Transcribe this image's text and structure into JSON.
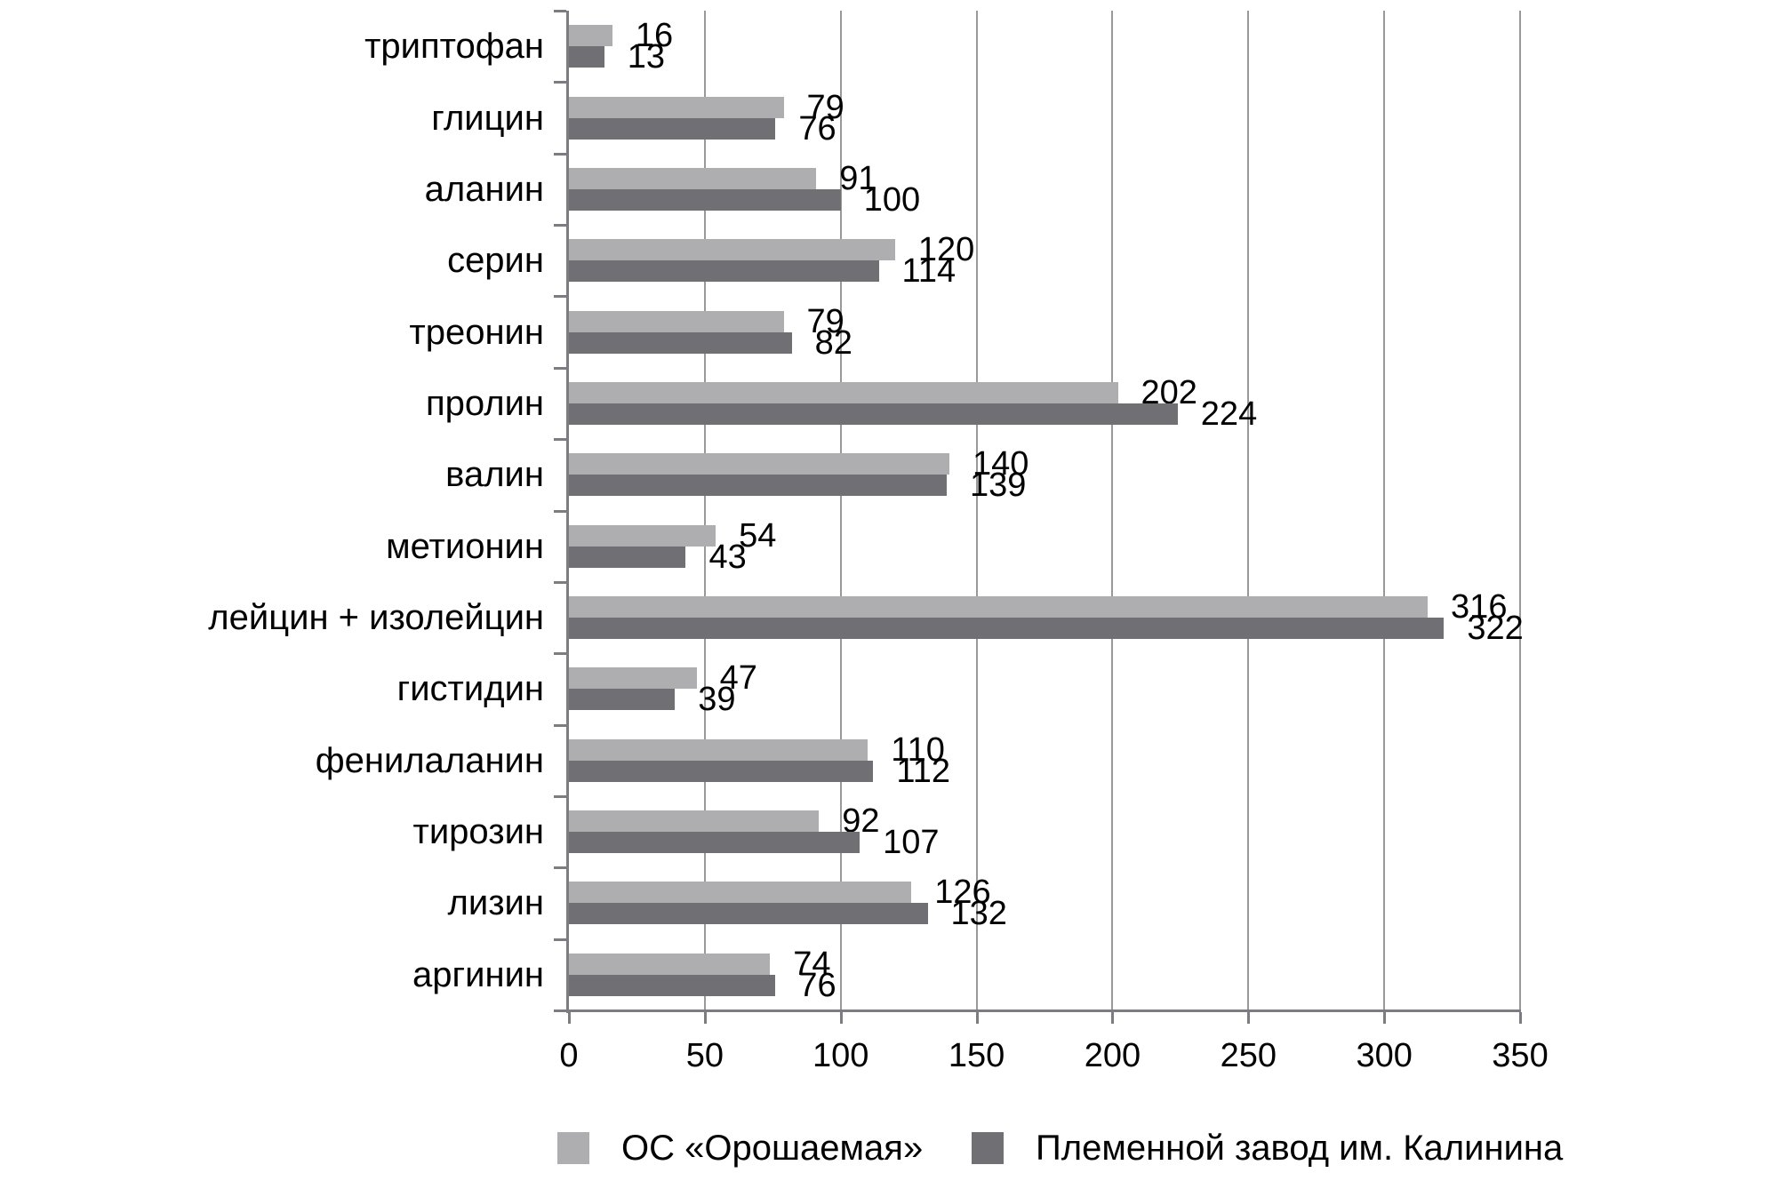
{
  "chart_data": {
    "type": "bar",
    "orientation": "horizontal",
    "title": "",
    "xlabel": "",
    "ylabel": "",
    "categories": [
      "триптофан",
      "глицин",
      "аланин",
      "серин",
      "треонин",
      "пролин",
      "валин",
      "метионин",
      "лейцин + изолейцин",
      "гистидин",
      "фенилаланин",
      "тирозин",
      "лизин",
      "аргинин"
    ],
    "series": [
      {
        "name": "ОС «Орошаемая»",
        "color": "#aeaeb1",
        "values": [
          16,
          79,
          91,
          120,
          79,
          202,
          140,
          54,
          316,
          47,
          110,
          92,
          126,
          74
        ]
      },
      {
        "name": "Племенной завод им. Калинина",
        "color": "#707074",
        "values": [
          13,
          76,
          100,
          114,
          82,
          224,
          139,
          43,
          322,
          39,
          112,
          107,
          132,
          76
        ]
      }
    ],
    "data_labels": true,
    "x_ticks": [
      0,
      50,
      100,
      150,
      200,
      250,
      300,
      350
    ],
    "xlim": [
      0,
      350
    ],
    "grid": "vertical",
    "legend_position": "bottom"
  },
  "colors": {
    "background": "#ffffff",
    "gridline": "#999999",
    "axis": "#7d7d81",
    "text": "#000000",
    "series_light": "#aeaeb1",
    "series_dark": "#707074"
  }
}
